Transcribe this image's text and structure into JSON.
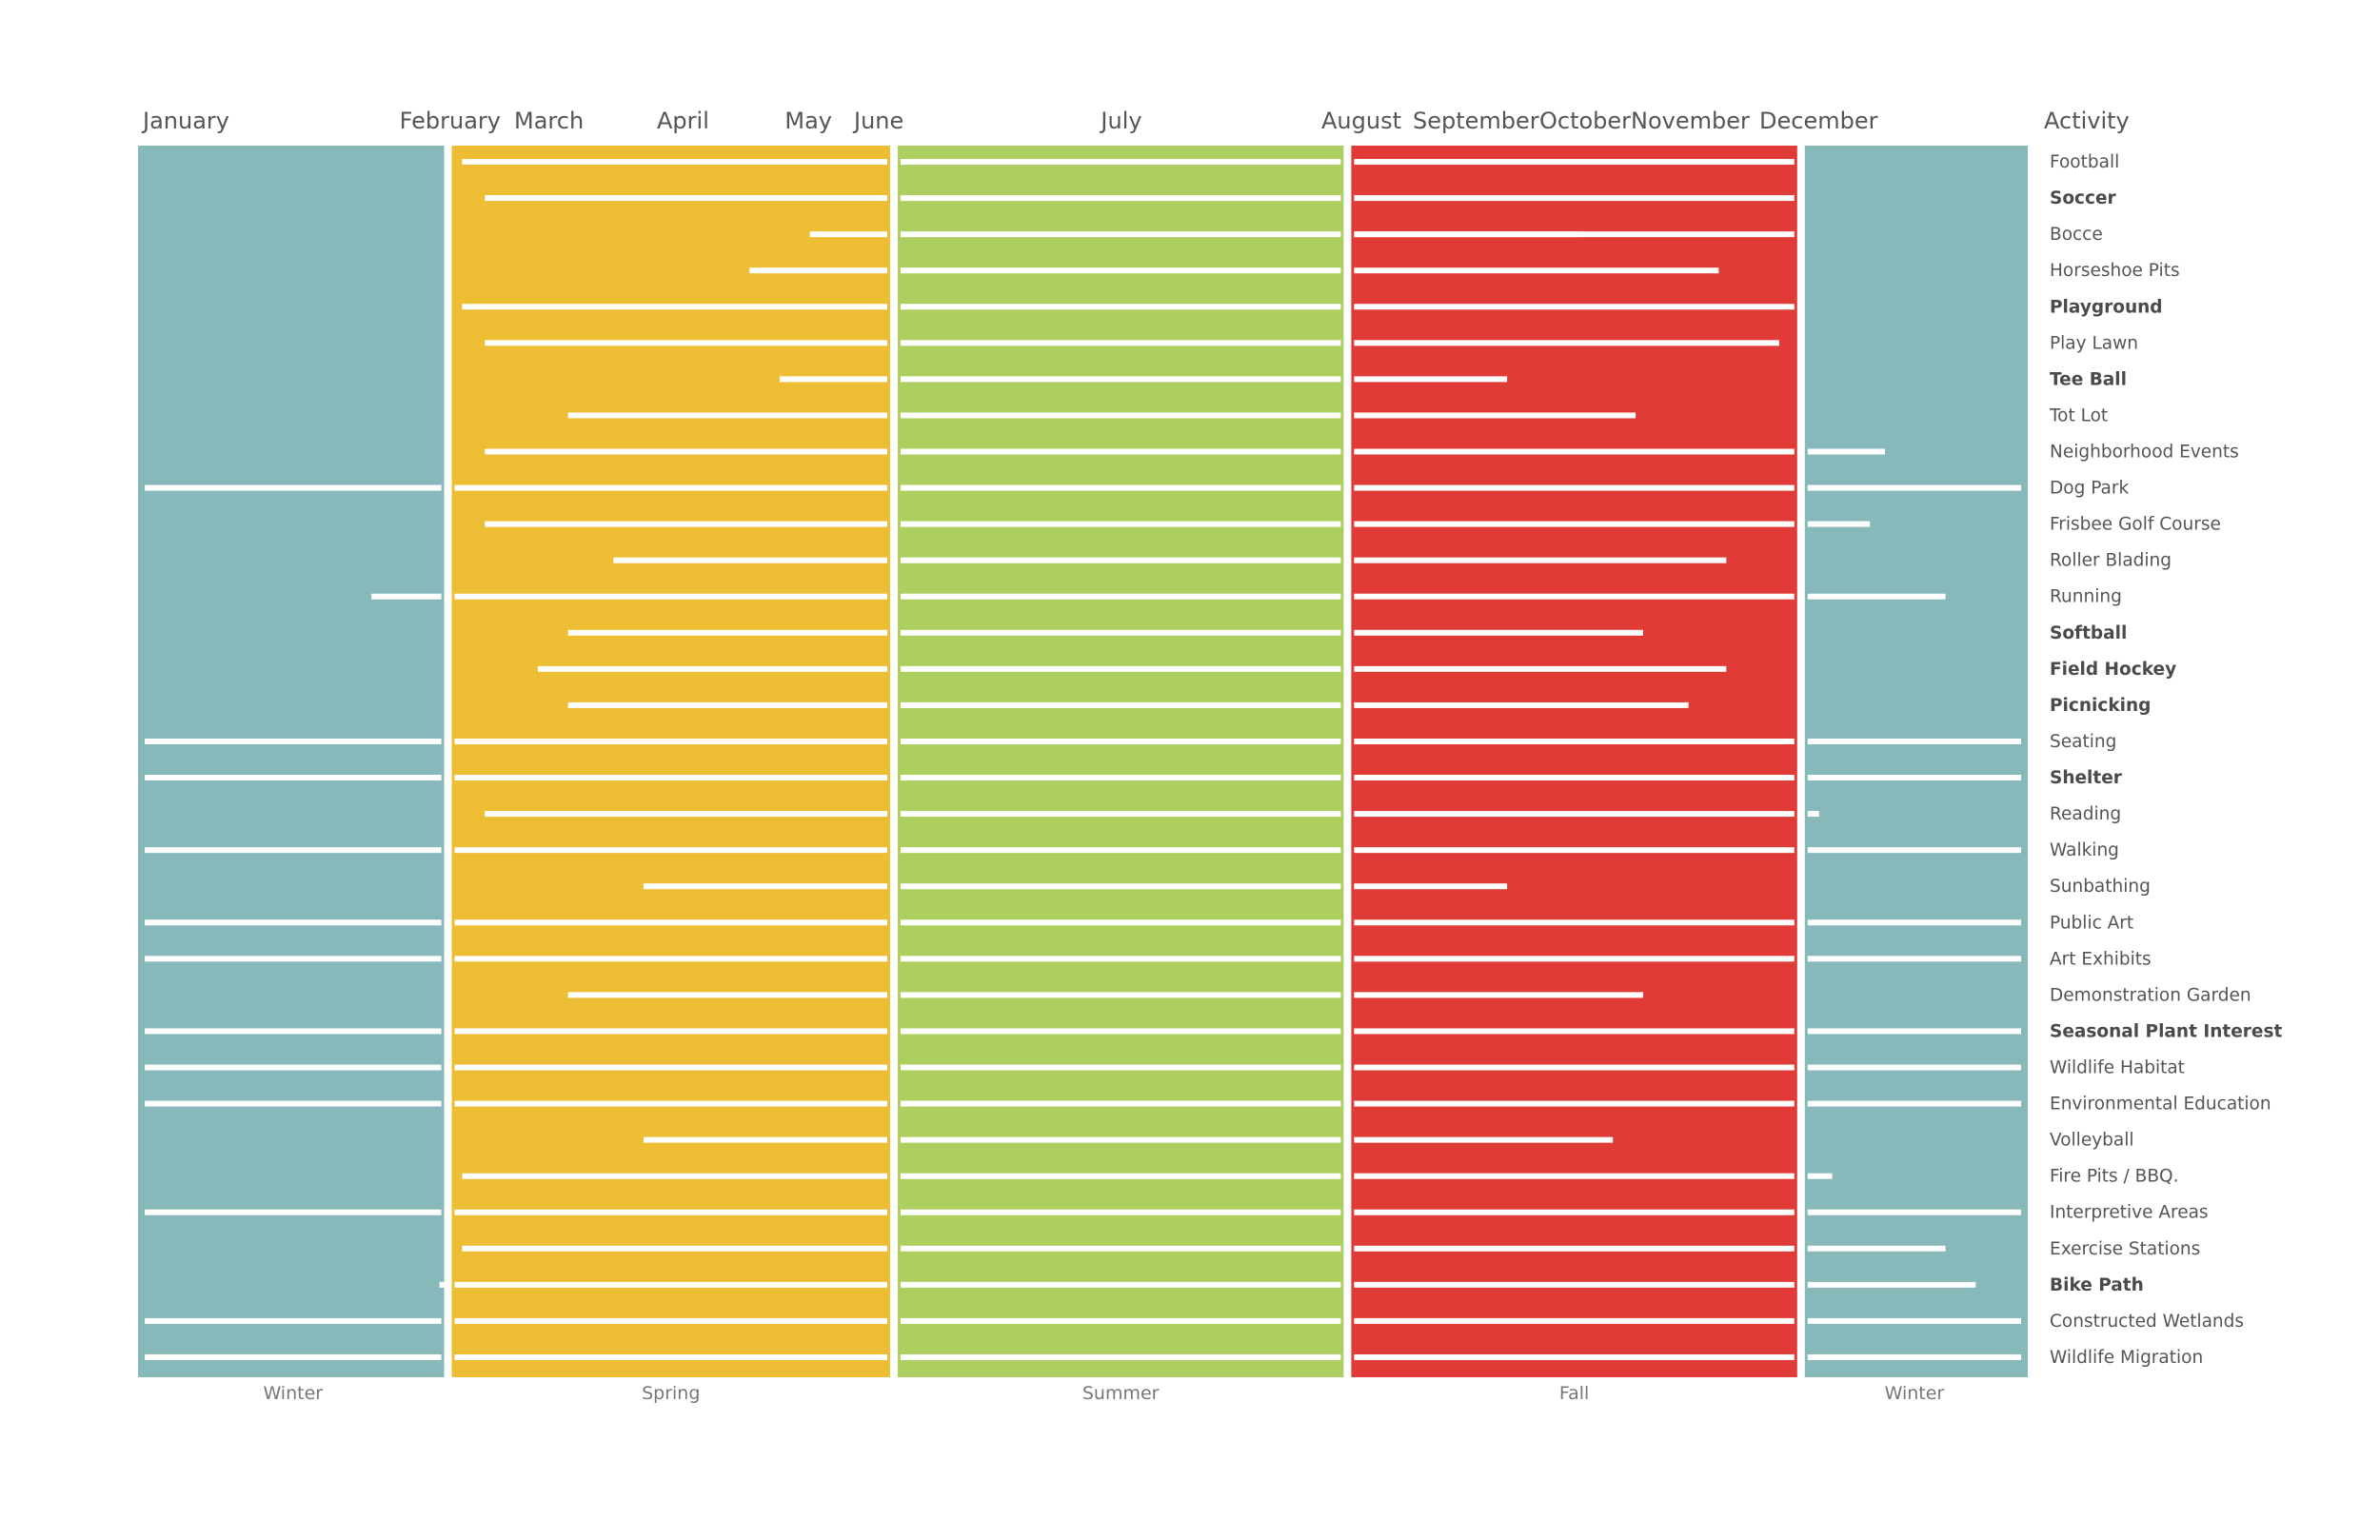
{
  "chart_data": {
    "type": "timeline",
    "months": [
      "January",
      "February",
      "March",
      "April",
      "May",
      "June",
      "July",
      "August",
      "September",
      "October",
      "November",
      "December"
    ],
    "activity_header": "Activity",
    "seasons": [
      {
        "name": "Winter",
        "start": 0,
        "end": 2.05,
        "color": "#87B8BA"
      },
      {
        "name": "Spring",
        "start": 2.05,
        "end": 5.0,
        "color": "#EDBD33"
      },
      {
        "name": "Summer",
        "start": 5.0,
        "end": 8.0,
        "color": "#ADCF60"
      },
      {
        "name": "Fall",
        "start": 8.0,
        "end": 11.0,
        "color": "#E03B36"
      },
      {
        "name": "Winter",
        "start": 11.0,
        "end": 12.5,
        "color": "#87B8BA"
      }
    ],
    "activities": [
      {
        "name": "Football",
        "bold": false,
        "segments": [
          [
            2.1,
            11.0
          ]
        ]
      },
      {
        "name": "Soccer",
        "bold": true,
        "segments": [
          [
            2.25,
            11.0
          ]
        ]
      },
      {
        "name": "Bocce",
        "bold": false,
        "segments": [
          [
            4.4,
            11.0
          ],
          [
            8.0,
            9.6
          ]
        ]
      },
      {
        "name": "Horseshoe Pits",
        "bold": false,
        "segments": [
          [
            4.0,
            8.0
          ],
          [
            8.0,
            10.5
          ]
        ]
      },
      {
        "name": "Playground",
        "bold": true,
        "segments": [
          [
            2.1,
            11.0
          ]
        ]
      },
      {
        "name": "Play Lawn",
        "bold": false,
        "segments": [
          [
            2.25,
            8.0
          ],
          [
            8.0,
            10.9
          ]
        ]
      },
      {
        "name": "Tee Ball",
        "bold": true,
        "segments": [
          [
            4.2,
            8.0
          ],
          [
            8.0,
            9.1
          ]
        ]
      },
      {
        "name": "Tot Lot",
        "bold": false,
        "segments": [
          [
            2.8,
            8.0
          ],
          [
            8.0,
            9.95
          ]
        ]
      },
      {
        "name": "Neighborhood Events",
        "bold": false,
        "segments": [
          [
            2.25,
            11.0
          ],
          [
            11.0,
            11.6
          ]
        ]
      },
      {
        "name": "Dog Park",
        "bold": false,
        "segments": [
          [
            0.0,
            12.5
          ]
        ]
      },
      {
        "name": "Frisbee Golf Course",
        "bold": false,
        "segments": [
          [
            2.25,
            11.0
          ],
          [
            11.0,
            11.5
          ]
        ]
      },
      {
        "name": "Roller Blading",
        "bold": false,
        "segments": [
          [
            3.1,
            8.0
          ],
          [
            8.0,
            10.55
          ]
        ]
      },
      {
        "name": "Running",
        "bold": false,
        "segments": [
          [
            1.5,
            12.0
          ]
        ]
      },
      {
        "name": "Softball",
        "bold": true,
        "segments": [
          [
            2.8,
            8.0
          ],
          [
            8.0,
            10.0
          ]
        ]
      },
      {
        "name": "Field Hockey",
        "bold": true,
        "segments": [
          [
            2.6,
            8.0
          ],
          [
            8.0,
            10.55
          ]
        ]
      },
      {
        "name": "Picnicking",
        "bold": true,
        "segments": [
          [
            2.8,
            8.0
          ],
          [
            8.0,
            10.3
          ]
        ]
      },
      {
        "name": "Seating",
        "bold": false,
        "segments": [
          [
            0.0,
            12.5
          ]
        ]
      },
      {
        "name": "Shelter",
        "bold": true,
        "segments": [
          [
            0.0,
            12.5
          ]
        ]
      },
      {
        "name": "Reading",
        "bold": false,
        "segments": [
          [
            2.25,
            11.0
          ],
          [
            11.0,
            11.05
          ]
        ]
      },
      {
        "name": "Walking",
        "bold": false,
        "segments": [
          [
            0.0,
            12.5
          ]
        ]
      },
      {
        "name": "Sunbathing",
        "bold": false,
        "segments": [
          [
            3.3,
            8.0
          ],
          [
            8.0,
            9.1
          ]
        ]
      },
      {
        "name": "Public Art",
        "bold": false,
        "segments": [
          [
            0.0,
            12.5
          ]
        ]
      },
      {
        "name": "Art Exhibits",
        "bold": false,
        "segments": [
          [
            0.0,
            12.5
          ]
        ]
      },
      {
        "name": "Demonstration Garden",
        "bold": false,
        "segments": [
          [
            2.8,
            8.0
          ],
          [
            8.0,
            10.0
          ]
        ]
      },
      {
        "name": "Seasonal Plant Interest",
        "bold": true,
        "segments": [
          [
            0.0,
            12.5
          ]
        ]
      },
      {
        "name": "Wildlife Habitat",
        "bold": false,
        "segments": [
          [
            0.0,
            12.5
          ]
        ]
      },
      {
        "name": "Environmental Education",
        "bold": false,
        "segments": [
          [
            0.0,
            12.5
          ]
        ]
      },
      {
        "name": "Volleyball",
        "bold": false,
        "segments": [
          [
            3.3,
            8.0
          ],
          [
            8.0,
            9.8
          ]
        ]
      },
      {
        "name": "Fire Pits / BBQ.",
        "bold": false,
        "segments": [
          [
            2.1,
            11.0
          ],
          [
            11.0,
            11.25
          ]
        ]
      },
      {
        "name": "Interpretive Areas",
        "bold": false,
        "segments": [
          [
            0.0,
            12.5
          ]
        ]
      },
      {
        "name": "Exercise Stations",
        "bold": false,
        "segments": [
          [
            2.1,
            11.0
          ],
          [
            11.0,
            12.0
          ]
        ]
      },
      {
        "name": "Bike Path",
        "bold": true,
        "segments": [
          [
            1.95,
            12.2
          ]
        ]
      },
      {
        "name": "Constructed Wetlands",
        "bold": false,
        "segments": [
          [
            0.0,
            12.5
          ]
        ]
      },
      {
        "name": "Wildlife Migration",
        "bold": false,
        "segments": [
          [
            0.0,
            12.5
          ]
        ]
      }
    ]
  }
}
